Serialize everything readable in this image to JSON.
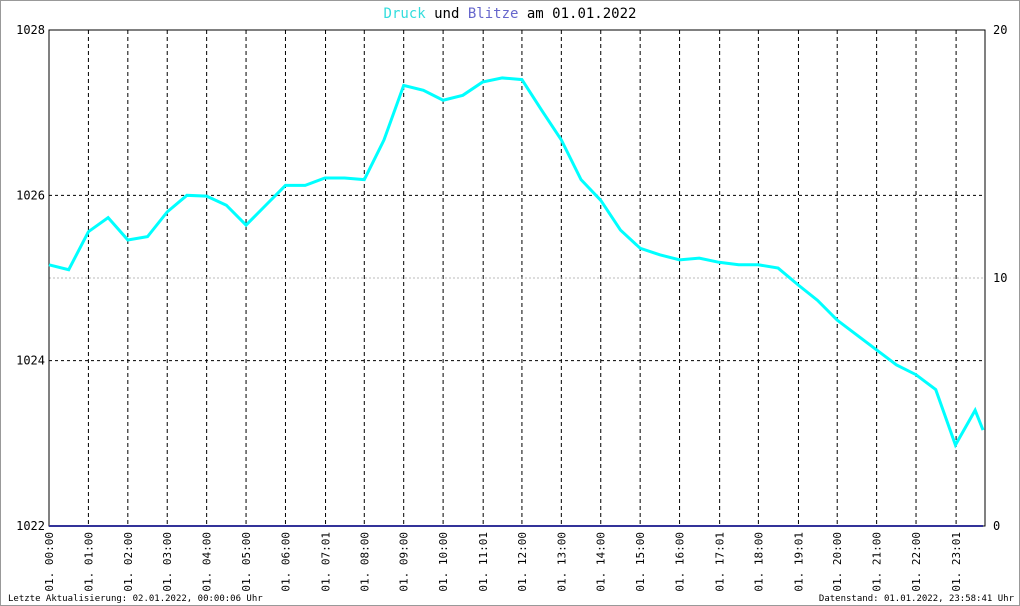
{
  "chart_data": {
    "type": "line",
    "title_connector": "und",
    "title_suffix": "am 01.01.2022",
    "x": [
      0,
      0.5,
      1,
      1.5,
      2,
      2.5,
      3,
      3.5,
      4,
      4.5,
      5,
      5.5,
      6,
      6.5,
      7,
      7.5,
      8,
      8.5,
      9,
      9.5,
      10,
      10.5,
      11,
      11.5,
      12,
      12.5,
      13,
      13.5,
      14,
      14.5,
      15,
      15.5,
      16,
      16.5,
      17,
      17.5,
      18,
      18.5,
      19,
      19.5,
      20,
      20.5,
      21,
      21.5,
      22,
      22.5,
      23,
      23.5,
      23.7
    ],
    "series": [
      {
        "name": "Druck",
        "color": "#00ffff",
        "values": [
          1025.16,
          1025.1,
          1025.56,
          1025.73,
          1025.46,
          1025.5,
          1025.8,
          1026.0,
          1025.99,
          1025.88,
          1025.64,
          1025.88,
          1026.12,
          1026.12,
          1026.21,
          1026.21,
          1026.19,
          1026.67,
          1027.33,
          1027.27,
          1027.15,
          1027.21,
          1027.37,
          1027.42,
          1027.4,
          1027.03,
          1026.67,
          1026.19,
          1025.94,
          1025.58,
          1025.36,
          1025.28,
          1025.22,
          1025.24,
          1025.19,
          1025.16,
          1025.16,
          1025.12,
          1024.92,
          1024.73,
          1024.49,
          1024.31,
          1024.13,
          1023.95,
          1023.83,
          1023.65,
          1022.98,
          1023.4,
          1023.16
        ]
      },
      {
        "name": "Blitze",
        "color": "#333399",
        "axis": "y2",
        "values": [
          0,
          0,
          0,
          0,
          0,
          0,
          0,
          0,
          0,
          0,
          0,
          0,
          0,
          0,
          0,
          0,
          0,
          0,
          0,
          0,
          0,
          0,
          0,
          0,
          0,
          0,
          0,
          0,
          0,
          0,
          0,
          0,
          0,
          0,
          0,
          0,
          0,
          0,
          0,
          0,
          0,
          0,
          0,
          0,
          0,
          0,
          0,
          0,
          0
        ]
      }
    ],
    "xlim": [
      0,
      23.75
    ],
    "xticks": [
      {
        "value": 0,
        "label": "01. 00:00"
      },
      {
        "value": 1,
        "label": "01. 01:00"
      },
      {
        "value": 2,
        "label": "01. 02:00"
      },
      {
        "value": 3,
        "label": "01. 03:00"
      },
      {
        "value": 4,
        "label": "01. 04:00"
      },
      {
        "value": 5,
        "label": "01. 05:00"
      },
      {
        "value": 6,
        "label": "01. 06:00"
      },
      {
        "value": 7.0167,
        "label": "01. 07:01"
      },
      {
        "value": 8,
        "label": "01. 08:00"
      },
      {
        "value": 9,
        "label": "01. 09:00"
      },
      {
        "value": 10,
        "label": "01. 10:00"
      },
      {
        "value": 11.0167,
        "label": "01. 11:01"
      },
      {
        "value": 12,
        "label": "01. 12:00"
      },
      {
        "value": 13,
        "label": "01. 13:00"
      },
      {
        "value": 14,
        "label": "01. 14:00"
      },
      {
        "value": 15,
        "label": "01. 15:00"
      },
      {
        "value": 16,
        "label": "01. 16:00"
      },
      {
        "value": 17.0167,
        "label": "01. 17:01"
      },
      {
        "value": 18,
        "label": "01. 18:00"
      },
      {
        "value": 19.0167,
        "label": "01. 19:01"
      },
      {
        "value": 20,
        "label": "01. 20:00"
      },
      {
        "value": 21,
        "label": "01. 21:00"
      },
      {
        "value": 22,
        "label": "01. 22:00"
      },
      {
        "value": 23.0167,
        "label": "01. 23:01"
      }
    ],
    "ylim": [
      1022,
      1028
    ],
    "yticks": [
      1022,
      1024,
      1026,
      1028
    ],
    "y2lim": [
      0,
      20
    ],
    "y2ticks": [
      0,
      10,
      20
    ],
    "grid": true,
    "footer_left": "Letzte Aktualisierung: 02.01.2022, 00:00:06 Uhr",
    "footer_right": "Datenstand: 01.01.2022, 23:58:41 Uhr"
  }
}
